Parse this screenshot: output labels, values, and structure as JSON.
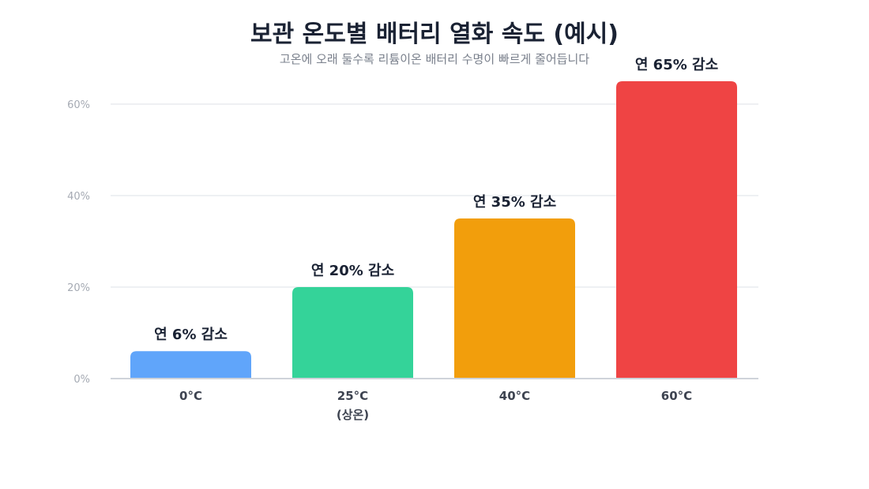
{
  "title": "보관 온도별 배터리 열화 속도 (예시)",
  "subtitle": "고온에 오래 둘수록 리튬이온 배터리 수명이 빠르게 줄어듭니다",
  "chart_data": {
    "type": "bar",
    "title": "보관 온도별 배터리 열화 속도 (예시)",
    "subtitle": "고온에 오래 둘수록 리튬이온 배터리 수명이 빠르게 줄어듭니다",
    "xlabel": "",
    "ylabel": "",
    "ylim": [
      0,
      65
    ],
    "yticks": [
      0,
      20,
      40,
      60
    ],
    "ytick_labels": [
      "0%",
      "20%",
      "40%",
      "60%"
    ],
    "grid": true,
    "categories": [
      [
        "0°C"
      ],
      [
        "25°C",
        "(상온)"
      ],
      [
        "40°C"
      ],
      [
        "60°C"
      ]
    ],
    "values": [
      6,
      20,
      35,
      65
    ],
    "data_labels": [
      "연 6% 감소",
      "연 20% 감소",
      "연 35% 감소",
      "연 65% 감소"
    ],
    "colors": [
      "#60a5fa",
      "#34d399",
      "#f29e0c",
      "#ef4444"
    ]
  }
}
